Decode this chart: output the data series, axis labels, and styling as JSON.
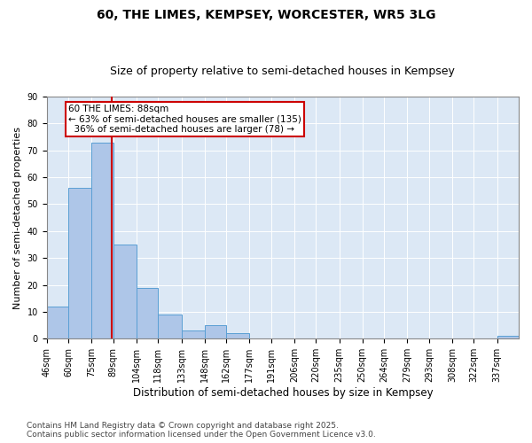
{
  "title1": "60, THE LIMES, KEMPSEY, WORCESTER, WR5 3LG",
  "title2": "Size of property relative to semi-detached houses in Kempsey",
  "xlabel": "Distribution of semi-detached houses by size in Kempsey",
  "ylabel": "Number of semi-detached properties",
  "bin_labels": [
    "46sqm",
    "60sqm",
    "75sqm",
    "89sqm",
    "104sqm",
    "118sqm",
    "133sqm",
    "148sqm",
    "162sqm",
    "177sqm",
    "191sqm",
    "206sqm",
    "220sqm",
    "235sqm",
    "250sqm",
    "264sqm",
    "279sqm",
    "293sqm",
    "308sqm",
    "322sqm",
    "337sqm"
  ],
  "bin_edges": [
    46,
    60,
    75,
    89,
    104,
    118,
    133,
    148,
    162,
    177,
    191,
    206,
    220,
    235,
    250,
    264,
    279,
    293,
    308,
    322,
    337,
    351
  ],
  "bar_heights": [
    12,
    56,
    73,
    35,
    19,
    9,
    3,
    5,
    2,
    0,
    0,
    0,
    0,
    0,
    0,
    0,
    0,
    0,
    0,
    0,
    1
  ],
  "bar_color": "#aec6e8",
  "bar_edge_color": "#5a9fd4",
  "property_size": 88,
  "vline_color": "#cc0000",
  "annotation_line1": "60 THE LIMES: 88sqm",
  "annotation_line2": "← 63% of semi-detached houses are smaller (135)",
  "annotation_line3": "  36% of semi-detached houses are larger (78) →",
  "annotation_box_color": "#ffffff",
  "annotation_box_edge_color": "#cc0000",
  "ylim": [
    0,
    90
  ],
  "yticks": [
    0,
    10,
    20,
    30,
    40,
    50,
    60,
    70,
    80,
    90
  ],
  "background_color": "#dce8f5",
  "footer_text": "Contains HM Land Registry data © Crown copyright and database right 2025.\nContains public sector information licensed under the Open Government Licence v3.0.",
  "title1_fontsize": 10,
  "title2_fontsize": 9,
  "xlabel_fontsize": 8.5,
  "ylabel_fontsize": 8,
  "annotation_fontsize": 7.5,
  "footer_fontsize": 6.5,
  "tick_fontsize": 7
}
